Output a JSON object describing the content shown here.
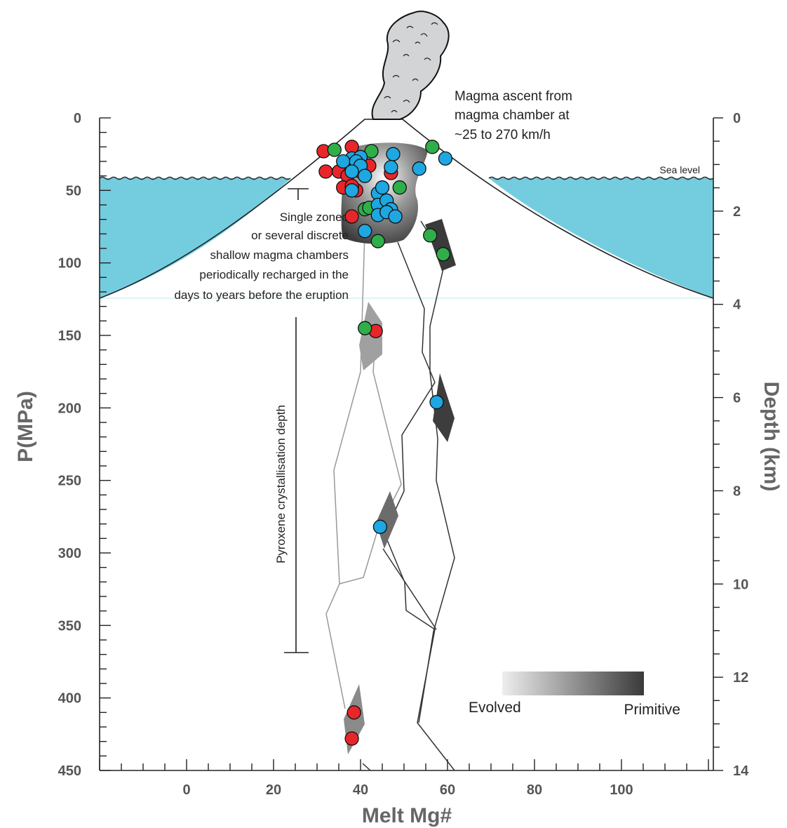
{
  "chart_data": {
    "type": "scatter",
    "title": "",
    "xlabel": "Melt Mg#",
    "ylabel": "P(MPa)",
    "y2label": "Depth (km)",
    "xlim": [
      -20,
      120
    ],
    "ylim": [
      0,
      450
    ],
    "y2lim": [
      0,
      14
    ],
    "x_ticks": [
      0,
      20,
      40,
      60,
      80,
      100
    ],
    "y_ticks": [
      0,
      50,
      100,
      150,
      200,
      250,
      300,
      350,
      400,
      450
    ],
    "y2_ticks": [
      0,
      2,
      4,
      6,
      8,
      10,
      12,
      14
    ],
    "grid": false,
    "colors": {
      "red": "#e8262a",
      "green": "#2fae4a",
      "blue": "#1ea7e1",
      "sea": "#74cddf"
    },
    "series": [
      {
        "color": "red",
        "points": [
          [
            31.5,
            23
          ],
          [
            32,
            37
          ],
          [
            38,
            20
          ],
          [
            35,
            37
          ],
          [
            37,
            40
          ],
          [
            36,
            48
          ],
          [
            39,
            50
          ],
          [
            38,
            47
          ],
          [
            42,
            33
          ],
          [
            40,
            37
          ],
          [
            38,
            68
          ],
          [
            47,
            38
          ],
          [
            43.5,
            147
          ],
          [
            38.5,
            410
          ],
          [
            38,
            428
          ]
        ]
      },
      {
        "color": "green",
        "points": [
          [
            34,
            22
          ],
          [
            42.5,
            23
          ],
          [
            56.5,
            20
          ],
          [
            49,
            48
          ],
          [
            41,
            63
          ],
          [
            42,
            62
          ],
          [
            44,
            85
          ],
          [
            56,
            81
          ],
          [
            59,
            94
          ],
          [
            41,
            145
          ]
        ]
      },
      {
        "color": "blue",
        "points": [
          [
            38,
            28
          ],
          [
            40,
            27
          ],
          [
            47.5,
            25
          ],
          [
            36,
            30
          ],
          [
            39,
            30
          ],
          [
            40,
            33
          ],
          [
            47,
            34
          ],
          [
            53.5,
            35
          ],
          [
            59.5,
            28
          ],
          [
            38,
            37
          ],
          [
            41,
            40
          ],
          [
            38,
            50
          ],
          [
            44,
            52
          ],
          [
            45,
            48
          ],
          [
            44,
            60
          ],
          [
            46,
            57
          ],
          [
            47,
            63
          ],
          [
            44,
            67
          ],
          [
            46,
            65
          ],
          [
            48,
            68
          ],
          [
            41,
            78
          ],
          [
            57.5,
            196
          ],
          [
            44.5,
            282
          ]
        ]
      }
    ],
    "annotations": [
      "Magma ascent from",
      "magma chamber at",
      "~25 to 270 km/h",
      "Sea level",
      "Single zoned",
      "or several discrete",
      "shallow magma chambers",
      "periodically recharged in the",
      "days to years before the eruption",
      "Pyroxene crystallisation depth"
    ],
    "legend": {
      "left": "Evolved",
      "right": "Primitive"
    }
  }
}
